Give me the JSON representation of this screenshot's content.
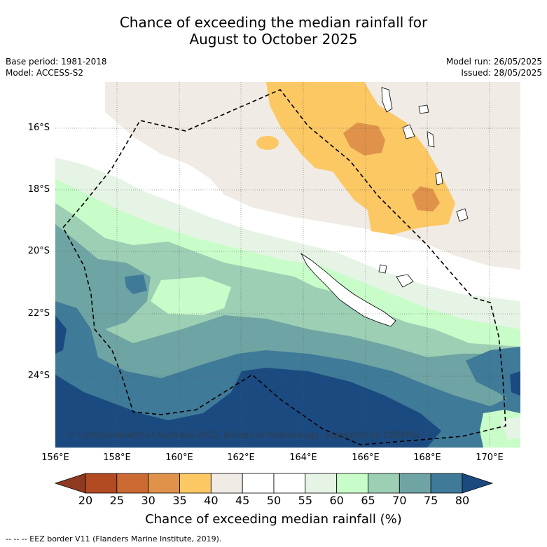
{
  "title_line1": "Chance of exceeding the median rainfall for",
  "title_line2": "August to October 2025",
  "base_period": "Base period: 1981-2018",
  "model": "Model: ACCESS-S2",
  "model_run": "Model run: 26/05/2025",
  "issued": "Issued: 28/05/2025",
  "latitudes": [
    "16°S",
    "18°S",
    "20°S",
    "22°S",
    "24°S"
  ],
  "longitudes": [
    "156°E",
    "158°E",
    "160°E",
    "162°E",
    "164°E",
    "166°E",
    "168°E",
    "170°E"
  ],
  "copyright": "© Commonwealth of Australia 2025, Bureau of Meteorology, supported by COSPPac",
  "colorbar": {
    "ticks": [
      "20",
      "25",
      "30",
      "35",
      "40",
      "45",
      "50",
      "55",
      "60",
      "65",
      "70",
      "75",
      "80"
    ],
    "colors": [
      "#b24a22",
      "#cc6a33",
      "#e0924a",
      "#fcc864",
      "#f0ebe4",
      "#ffffff",
      "#ffffff",
      "#e6f4e6",
      "#c8fcc8",
      "#9ccfb4",
      "#6fa4a4",
      "#3f7a98"
    ],
    "below_color": "#8e3a20",
    "above_color": "#1b4a80",
    "label": "Chance of exceeding median rainfall (%)"
  },
  "footnote": "--  --  -- EEZ border V11 (Flanders Marine Institute, 2019)."
}
